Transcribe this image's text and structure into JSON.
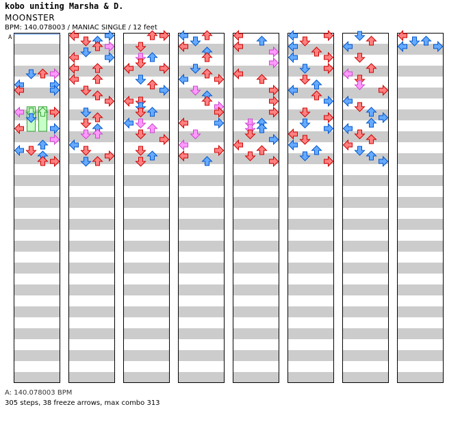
{
  "header": {
    "artist": "kobo uniting Marsha & D.",
    "title": "MOONSTER",
    "meta": "BPM: 140.078003 / MANIAC SINGLE / 12 feet"
  },
  "footer": {
    "bpm_note": "A: 140.078003 BPM",
    "stats": "305 steps, 38 freeze arrows, max combo 313"
  },
  "colors": {
    "red_arrow": "#ff8080",
    "blue_arrow": "#66aaff",
    "pink_arrow": "#ff99ff",
    "freeze": "#c8ffc8",
    "stripe": "#cccccc",
    "border": "#000000"
  },
  "chart_data": {
    "type": "table",
    "title": "MOONSTER",
    "difficulty": "MANIAC SINGLE",
    "level": "12 feet",
    "bpm": 140.078003,
    "bpm_marker": "A",
    "lanes": [
      "left",
      "down",
      "up",
      "right"
    ],
    "measures_per_column": 8,
    "total_measures": 65,
    "steps": 305,
    "freeze_arrows": 38,
    "max_combo": 313,
    "notes": [
      [
        0,
        7,
        3,
        "r",
        0
      ],
      [
        0,
        7,
        1,
        "b",
        0
      ],
      [
        0,
        7,
        2,
        "r",
        0
      ],
      [
        0,
        7,
        3,
        "p",
        0
      ],
      [
        0,
        9,
        0,
        "b",
        0
      ],
      [
        0,
        9,
        3,
        "b",
        0
      ],
      [
        0,
        10,
        0,
        "r",
        0
      ],
      [
        0,
        10,
        3,
        "b",
        0
      ],
      [
        0,
        14,
        0,
        "p",
        0
      ],
      [
        0,
        14,
        1,
        "g",
        0
      ],
      [
        0,
        14,
        2,
        "g",
        0
      ],
      [
        0,
        14,
        3,
        "r",
        0
      ],
      [
        0,
        15,
        1,
        "b",
        0
      ],
      [
        0,
        17,
        0,
        "r",
        0
      ],
      [
        0,
        17,
        3,
        "b",
        0
      ],
      [
        0,
        19,
        3,
        "p",
        0
      ],
      [
        0,
        20,
        2,
        "b",
        0
      ],
      [
        0,
        21,
        0,
        "b",
        0
      ],
      [
        0,
        21,
        1,
        "r",
        0
      ],
      [
        0,
        22,
        2,
        "b",
        0
      ],
      [
        0,
        23,
        2,
        "r",
        0
      ],
      [
        0,
        23,
        3,
        "r",
        0
      ],
      [
        1,
        0,
        0,
        "r",
        0
      ],
      [
        1,
        0,
        3,
        "b",
        0
      ],
      [
        1,
        1,
        1,
        "r",
        0
      ],
      [
        1,
        1,
        2,
        "b",
        0
      ],
      [
        1,
        2,
        2,
        "r",
        0
      ],
      [
        1,
        2,
        3,
        "p",
        0
      ],
      [
        1,
        3,
        1,
        "b",
        0
      ],
      [
        1,
        4,
        0,
        "r",
        0
      ],
      [
        1,
        4,
        3,
        "b",
        0
      ],
      [
        1,
        6,
        0,
        "r",
        0
      ],
      [
        1,
        6,
        2,
        "r",
        0
      ],
      [
        1,
        8,
        0,
        "r",
        0
      ],
      [
        1,
        8,
        2,
        "r",
        0
      ],
      [
        1,
        10,
        1,
        "r",
        0
      ],
      [
        1,
        11,
        2,
        "r",
        0
      ],
      [
        1,
        12,
        3,
        "r",
        0
      ],
      [
        1,
        14,
        1,
        "b",
        0
      ],
      [
        1,
        15,
        2,
        "r",
        0
      ],
      [
        1,
        16,
        1,
        "r",
        0
      ],
      [
        1,
        17,
        2,
        "b",
        0
      ],
      [
        1,
        18,
        1,
        "p",
        0
      ],
      [
        1,
        18,
        2,
        "p",
        0
      ],
      [
        1,
        20,
        0,
        "b",
        0
      ],
      [
        1,
        21,
        1,
        "r",
        0
      ],
      [
        1,
        22,
        3,
        "r",
        0
      ],
      [
        1,
        23,
        1,
        "b",
        0
      ],
      [
        1,
        23,
        2,
        "r",
        0
      ],
      [
        2,
        0,
        2,
        "r",
        0
      ],
      [
        2,
        0,
        3,
        "r",
        0
      ],
      [
        2,
        2,
        1,
        "r",
        0
      ],
      [
        2,
        4,
        1,
        "p",
        0
      ],
      [
        2,
        4,
        2,
        "b",
        0
      ],
      [
        2,
        5,
        1,
        "r",
        0
      ],
      [
        2,
        6,
        0,
        "r",
        0
      ],
      [
        2,
        6,
        3,
        "r",
        0
      ],
      [
        2,
        8,
        1,
        "b",
        0
      ],
      [
        2,
        9,
        2,
        "r",
        0
      ],
      [
        2,
        10,
        3,
        "b",
        0
      ],
      [
        2,
        12,
        0,
        "r",
        0
      ],
      [
        2,
        12,
        1,
        "r",
        0
      ],
      [
        2,
        13,
        1,
        "b",
        0
      ],
      [
        2,
        14,
        1,
        "r",
        0
      ],
      [
        2,
        14,
        2,
        "b",
        0
      ],
      [
        2,
        16,
        0,
        "b",
        0
      ],
      [
        2,
        16,
        1,
        "p",
        0
      ],
      [
        2,
        17,
        2,
        "p",
        0
      ],
      [
        2,
        18,
        1,
        "r",
        0
      ],
      [
        2,
        19,
        3,
        "r",
        0
      ],
      [
        2,
        21,
        1,
        "r",
        0
      ],
      [
        2,
        22,
        2,
        "b",
        0
      ],
      [
        2,
        23,
        1,
        "r",
        0
      ],
      [
        3,
        0,
        0,
        "b",
        0
      ],
      [
        3,
        0,
        2,
        "r",
        0
      ],
      [
        3,
        1,
        1,
        "b",
        0
      ],
      [
        3,
        2,
        0,
        "r",
        0
      ],
      [
        3,
        3,
        2,
        "b",
        0
      ],
      [
        3,
        4,
        2,
        "r",
        0
      ],
      [
        3,
        6,
        1,
        "b",
        0
      ],
      [
        3,
        7,
        2,
        "r",
        0
      ],
      [
        3,
        8,
        0,
        "b",
        0
      ],
      [
        3,
        8,
        3,
        "r",
        0
      ],
      [
        3,
        10,
        1,
        "p",
        0
      ],
      [
        3,
        11,
        2,
        "b",
        0
      ],
      [
        3,
        12,
        2,
        "r",
        0
      ],
      [
        3,
        13,
        3,
        "p",
        0
      ],
      [
        3,
        14,
        3,
        "r",
        0
      ],
      [
        3,
        16,
        0,
        "r",
        0
      ],
      [
        3,
        16,
        3,
        "b",
        0
      ],
      [
        3,
        18,
        1,
        "p",
        0
      ],
      [
        3,
        20,
        0,
        "p",
        0
      ],
      [
        3,
        21,
        3,
        "r",
        0
      ],
      [
        3,
        22,
        0,
        "r",
        0
      ],
      [
        3,
        23,
        2,
        "b",
        0
      ],
      [
        4,
        0,
        0,
        "r",
        0
      ],
      [
        4,
        1,
        2,
        "b",
        0
      ],
      [
        4,
        2,
        0,
        "r",
        0
      ],
      [
        4,
        3,
        3,
        "p",
        0
      ],
      [
        4,
        5,
        3,
        "p",
        0
      ],
      [
        4,
        7,
        0,
        "r",
        0
      ],
      [
        4,
        8,
        2,
        "r",
        0
      ],
      [
        4,
        10,
        3,
        "r",
        0
      ],
      [
        4,
        12,
        3,
        "r",
        0
      ],
      [
        4,
        14,
        3,
        "r",
        0
      ],
      [
        4,
        16,
        1,
        "p",
        0
      ],
      [
        4,
        16,
        2,
        "b",
        0
      ],
      [
        4,
        17,
        1,
        "p",
        0
      ],
      [
        4,
        17,
        2,
        "b",
        0
      ],
      [
        4,
        18,
        1,
        "r",
        0
      ],
      [
        4,
        19,
        3,
        "b",
        0
      ],
      [
        4,
        20,
        0,
        "r",
        0
      ],
      [
        4,
        21,
        2,
        "r",
        0
      ],
      [
        4,
        22,
        1,
        "r",
        0
      ],
      [
        4,
        23,
        3,
        "r",
        0
      ],
      [
        5,
        0,
        0,
        "b",
        0
      ],
      [
        5,
        0,
        3,
        "r",
        0
      ],
      [
        5,
        1,
        1,
        "r",
        0
      ],
      [
        5,
        2,
        0,
        "b",
        0
      ],
      [
        5,
        3,
        2,
        "r",
        0
      ],
      [
        5,
        4,
        0,
        "b",
        0
      ],
      [
        5,
        4,
        3,
        "r",
        0
      ],
      [
        5,
        6,
        1,
        "b",
        0
      ],
      [
        5,
        6,
        3,
        "r",
        0
      ],
      [
        5,
        8,
        1,
        "r",
        0
      ],
      [
        5,
        9,
        2,
        "b",
        0
      ],
      [
        5,
        10,
        0,
        "b",
        0
      ],
      [
        5,
        11,
        2,
        "r",
        0
      ],
      [
        5,
        12,
        3,
        "b",
        0
      ],
      [
        5,
        14,
        1,
        "r",
        0
      ],
      [
        5,
        15,
        3,
        "r",
        0
      ],
      [
        5,
        16,
        1,
        "b",
        0
      ],
      [
        5,
        17,
        3,
        "b",
        0
      ],
      [
        5,
        18,
        0,
        "r",
        0
      ],
      [
        5,
        19,
        1,
        "r",
        0
      ],
      [
        5,
        20,
        0,
        "b",
        0
      ],
      [
        5,
        21,
        2,
        "b",
        0
      ],
      [
        5,
        22,
        1,
        "b",
        0
      ],
      [
        5,
        23,
        3,
        "r",
        0
      ],
      [
        6,
        0,
        1,
        "b",
        0
      ],
      [
        6,
        1,
        2,
        "r",
        0
      ],
      [
        6,
        2,
        0,
        "b",
        0
      ],
      [
        6,
        4,
        1,
        "r",
        0
      ],
      [
        6,
        6,
        2,
        "r",
        0
      ],
      [
        6,
        7,
        0,
        "p",
        0
      ],
      [
        6,
        8,
        1,
        "r",
        0
      ],
      [
        6,
        9,
        1,
        "p",
        0
      ],
      [
        6,
        10,
        3,
        "r",
        0
      ],
      [
        6,
        12,
        0,
        "b",
        0
      ],
      [
        6,
        13,
        1,
        "r",
        0
      ],
      [
        6,
        14,
        2,
        "b",
        0
      ],
      [
        6,
        15,
        3,
        "b",
        0
      ],
      [
        6,
        16,
        2,
        "b",
        0
      ],
      [
        6,
        17,
        0,
        "b",
        0
      ],
      [
        6,
        18,
        1,
        "r",
        0
      ],
      [
        6,
        19,
        2,
        "r",
        0
      ],
      [
        6,
        20,
        0,
        "r",
        0
      ],
      [
        6,
        21,
        1,
        "b",
        0
      ],
      [
        6,
        22,
        2,
        "b",
        0
      ],
      [
        6,
        23,
        3,
        "b",
        0
      ],
      [
        7,
        0,
        0,
        "r",
        0
      ],
      [
        7,
        1,
        2,
        "b",
        0
      ],
      [
        7,
        1,
        1,
        "b",
        0
      ],
      [
        7,
        2,
        0,
        "b",
        0
      ],
      [
        7,
        2,
        3,
        "b",
        0
      ]
    ]
  }
}
